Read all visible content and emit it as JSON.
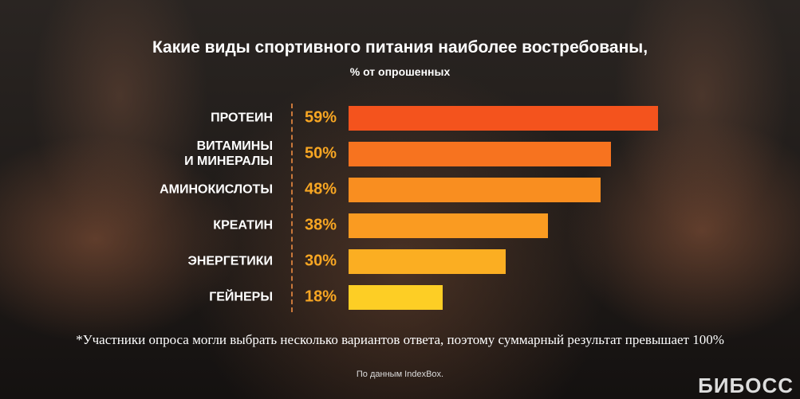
{
  "chart_data": {
    "type": "bar",
    "orientation": "horizontal",
    "title": "Какие виды спортивного питания наиболее востребованы,",
    "subtitle": "% от опрошенных",
    "categories": [
      "ПРОТЕИН",
      "ВИТАМИНЫ\nИ МИНЕРАЛЫ",
      "АМИНОКИСЛОТЫ",
      "КРЕАТИН",
      "ЭНЕРГЕТИКИ",
      "ГЕЙНЕРЫ"
    ],
    "values": [
      59,
      50,
      48,
      38,
      30,
      18
    ],
    "value_labels": [
      "59%",
      "50%",
      "48%",
      "38%",
      "30%",
      "18%"
    ],
    "colors": [
      "#f4531d",
      "#f7731f",
      "#f98e20",
      "#fa9b21",
      "#fbae22",
      "#fdce25"
    ],
    "footnote": "*Участники опроса могли выбрать несколько вариантов ответа, поэтому суммарный результат превышает 100%",
    "source": "По данным IndexBox.",
    "logo": "БИБОСС"
  }
}
